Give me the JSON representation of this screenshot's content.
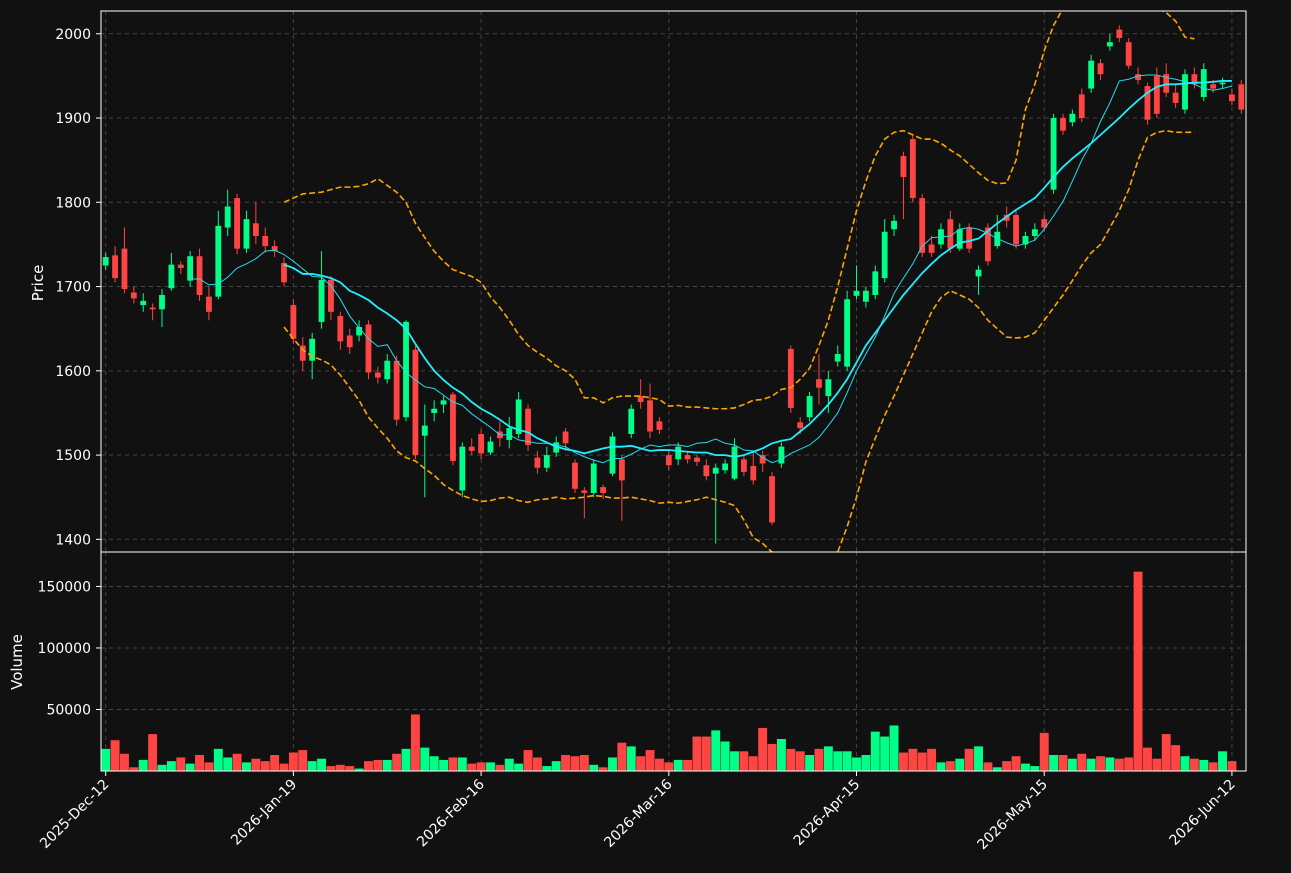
{
  "colors": {
    "background": "#111111",
    "up": "#00ff88",
    "down": "#ff4444",
    "ma_fast": "#22ddee",
    "ma_slow": "#22eeff",
    "bands": "#ffa500",
    "grid": "#444444",
    "axes": "#ffffff"
  },
  "chart_data": {
    "type": "candlestick",
    "grid": true,
    "price_panel": {
      "ylabel": "Price",
      "ylim": [
        1385,
        2027
      ],
      "yticks": [
        1400,
        1500,
        1600,
        1700,
        1800,
        1900,
        2000
      ]
    },
    "volume_panel": {
      "ylabel": "Volume",
      "ylim": [
        0,
        178000
      ],
      "yticks": [
        50000,
        100000,
        150000
      ]
    },
    "x_tick_labels": [
      {
        "label": "2025-Dec-12",
        "index": 0
      },
      {
        "label": "2026-Jan-19",
        "index": 20
      },
      {
        "label": "2026-Feb-16",
        "index": 40
      },
      {
        "label": "2026-Mar-16",
        "index": 60
      },
      {
        "label": "2026-Apr-15",
        "index": 80
      },
      {
        "label": "2026-May-15",
        "index": 100
      },
      {
        "label": "2026-Jun-12",
        "index": 120
      }
    ],
    "candles": [
      [
        1725,
        1735,
        1720,
        1740
      ],
      [
        1737,
        1710,
        1705,
        1748
      ],
      [
        1745,
        1697,
        1692,
        1770
      ],
      [
        1693,
        1686,
        1680,
        1700
      ],
      [
        1678,
        1683,
        1670,
        1692
      ],
      [
        1675,
        1673,
        1660,
        1680
      ],
      [
        1673,
        1690,
        1652,
        1697
      ],
      [
        1698,
        1726,
        1695,
        1740
      ],
      [
        1726,
        1722,
        1715,
        1730
      ],
      [
        1707,
        1736,
        1700,
        1742
      ],
      [
        1736,
        1690,
        1683,
        1745
      ],
      [
        1688,
        1670,
        1660,
        1700
      ],
      [
        1688,
        1772,
        1685,
        1790
      ],
      [
        1770,
        1795,
        1760,
        1815
      ],
      [
        1805,
        1745,
        1738,
        1810
      ],
      [
        1745,
        1780,
        1740,
        1790
      ],
      [
        1775,
        1760,
        1750,
        1800
      ],
      [
        1760,
        1748,
        1740,
        1770
      ],
      [
        1748,
        1742,
        1735,
        1755
      ],
      [
        1728,
        1705,
        1700,
        1735
      ],
      [
        1678,
        1638,
        1632,
        1685
      ],
      [
        1630,
        1612,
        1600,
        1640
      ],
      [
        1612,
        1638,
        1590,
        1645
      ],
      [
        1658,
        1708,
        1650,
        1742
      ],
      [
        1708,
        1670,
        1660,
        1712
      ],
      [
        1665,
        1635,
        1625,
        1670
      ],
      [
        1642,
        1628,
        1620,
        1650
      ],
      [
        1642,
        1652,
        1635,
        1660
      ],
      [
        1655,
        1598,
        1590,
        1660
      ],
      [
        1598,
        1592,
        1585,
        1605
      ],
      [
        1590,
        1612,
        1585,
        1620
      ],
      [
        1612,
        1542,
        1535,
        1618
      ],
      [
        1545,
        1658,
        1540,
        1660
      ],
      [
        1625,
        1500,
        1495,
        1630
      ],
      [
        1523,
        1535,
        1450,
        1560
      ],
      [
        1550,
        1555,
        1540,
        1565
      ],
      [
        1560,
        1565,
        1550,
        1570
      ],
      [
        1572,
        1493,
        1488,
        1575
      ],
      [
        1458,
        1510,
        1450,
        1515
      ],
      [
        1510,
        1505,
        1500,
        1520
      ],
      [
        1525,
        1502,
        1495,
        1530
      ],
      [
        1503,
        1516,
        1500,
        1522
      ],
      [
        1528,
        1520,
        1510,
        1540
      ],
      [
        1518,
        1532,
        1508,
        1545
      ],
      [
        1525,
        1566,
        1520,
        1575
      ],
      [
        1555,
        1512,
        1505,
        1560
      ],
      [
        1497,
        1485,
        1478,
        1505
      ],
      [
        1485,
        1500,
        1480,
        1510
      ],
      [
        1503,
        1515,
        1498,
        1522
      ],
      [
        1528,
        1514,
        1505,
        1532
      ],
      [
        1491,
        1460,
        1455,
        1495
      ],
      [
        1458,
        1455,
        1425,
        1462
      ],
      [
        1455,
        1490,
        1450,
        1495
      ],
      [
        1462,
        1455,
        1448,
        1465
      ],
      [
        1478,
        1522,
        1475,
        1527
      ],
      [
        1495,
        1470,
        1422,
        1500
      ],
      [
        1525,
        1555,
        1520,
        1560
      ],
      [
        1570,
        1563,
        1555,
        1590
      ],
      [
        1565,
        1528,
        1520,
        1585
      ],
      [
        1540,
        1530,
        1525,
        1545
      ],
      [
        1500,
        1488,
        1482,
        1505
      ],
      [
        1495,
        1510,
        1488,
        1515
      ],
      [
        1500,
        1495,
        1490,
        1505
      ],
      [
        1497,
        1492,
        1487,
        1500
      ],
      [
        1488,
        1475,
        1470,
        1495
      ],
      [
        1478,
        1485,
        1395,
        1490
      ],
      [
        1482,
        1490,
        1478,
        1495
      ],
      [
        1472,
        1510,
        1470,
        1520
      ],
      [
        1495,
        1480,
        1475,
        1500
      ],
      [
        1487,
        1470,
        1465,
        1505
      ],
      [
        1500,
        1490,
        1480,
        1505
      ],
      [
        1475,
        1420,
        1417,
        1480
      ],
      [
        1490,
        1510,
        1485,
        1515
      ],
      [
        1626,
        1556,
        1550,
        1630
      ],
      [
        1539,
        1532,
        1525,
        1545
      ],
      [
        1545,
        1570,
        1540,
        1575
      ],
      [
        1590,
        1580,
        1560,
        1620
      ],
      [
        1570,
        1590,
        1550,
        1600
      ],
      [
        1611,
        1620,
        1605,
        1630
      ],
      [
        1605,
        1685,
        1600,
        1695
      ],
      [
        1689,
        1695,
        1685,
        1725
      ],
      [
        1682,
        1695,
        1675,
        1700
      ],
      [
        1690,
        1718,
        1685,
        1725
      ],
      [
        1710,
        1765,
        1705,
        1780
      ],
      [
        1768,
        1778,
        1760,
        1785
      ],
      [
        1855,
        1830,
        1780,
        1860
      ],
      [
        1875,
        1805,
        1800,
        1880
      ],
      [
        1805,
        1740,
        1735,
        1810
      ],
      [
        1750,
        1740,
        1735,
        1760
      ],
      [
        1750,
        1768,
        1745,
        1775
      ],
      [
        1780,
        1745,
        1740,
        1790
      ],
      [
        1745,
        1768,
        1742,
        1775
      ],
      [
        1770,
        1745,
        1740,
        1775
      ],
      [
        1712,
        1720,
        1690,
        1725
      ],
      [
        1770,
        1730,
        1725,
        1775
      ],
      [
        1748,
        1765,
        1745,
        1785
      ],
      [
        1785,
        1778,
        1770,
        1795
      ],
      [
        1785,
        1750,
        1745,
        1790
      ],
      [
        1750,
        1760,
        1745,
        1765
      ],
      [
        1760,
        1768,
        1755,
        1775
      ],
      [
        1780,
        1770,
        1765,
        1785
      ],
      [
        1815,
        1900,
        1810,
        1905
      ],
      [
        1900,
        1885,
        1880,
        1905
      ],
      [
        1895,
        1905,
        1890,
        1910
      ],
      [
        1928,
        1900,
        1895,
        1935
      ],
      [
        1935,
        1968,
        1930,
        1975
      ],
      [
        1965,
        1952,
        1945,
        1970
      ],
      [
        1985,
        1990,
        1980,
        2000
      ],
      [
        2005,
        1995,
        1990,
        2010
      ],
      [
        1990,
        1962,
        1958,
        1995
      ],
      [
        1952,
        1945,
        1940,
        1960
      ],
      [
        1938,
        1898,
        1892,
        1942
      ],
      [
        1950,
        1905,
        1900,
        1960
      ],
      [
        1952,
        1930,
        1925,
        1965
      ],
      [
        1930,
        1918,
        1912,
        1940
      ],
      [
        1910,
        1952,
        1905,
        1958
      ],
      [
        1952,
        1940,
        1935,
        1960
      ],
      [
        1925,
        1958,
        1920,
        1965
      ],
      [
        1940,
        1935,
        1930,
        1945
      ],
      [
        1940,
        1942,
        1935,
        1948
      ],
      [
        1928,
        1920,
        1915,
        1935
      ],
      [
        1940,
        1910,
        1905,
        1945
      ]
    ],
    "volume": [
      18000,
      25000,
      14000,
      3000,
      9000,
      30000,
      5000,
      8000,
      11000,
      6000,
      13000,
      7000,
      18000,
      11000,
      14000,
      7000,
      10000,
      8000,
      13000,
      6000,
      15000,
      17000,
      8000,
      10000,
      4000,
      5000,
      4000,
      2000,
      8000,
      9000,
      9000,
      14000,
      18000,
      46000,
      19000,
      12000,
      9000,
      11000,
      11000,
      6000,
      7000,
      7000,
      5000,
      10000,
      6000,
      17000,
      11000,
      4000,
      8000,
      13000,
      12000,
      13000,
      5000,
      3000,
      11000,
      23000,
      20000,
      12000,
      17000,
      10000,
      7000,
      9000,
      9000,
      28000,
      28000,
      33000,
      24000,
      16000,
      16000,
      12000,
      35000,
      22000,
      26000,
      18000,
      16000,
      13000,
      18000,
      20000,
      16000,
      16000,
      11000,
      13000,
      32000,
      28000,
      37000,
      15000,
      18000,
      15000,
      18000,
      7000,
      8000,
      10000,
      18000,
      20000,
      7000,
      3000,
      8000,
      12000,
      6000,
      4000,
      31000,
      13000,
      13000,
      10000,
      14000,
      10000,
      12000,
      11000,
      10000,
      11000,
      162000,
      19000,
      10000,
      30000,
      21000,
      12000,
      10000,
      9000,
      7000,
      16000,
      8000
    ],
    "ma_fast": [
      null,
      null,
      null,
      null,
      null,
      null,
      null,
      null,
      null,
      1709,
      1709,
      1702,
      1703,
      1711,
      1722,
      1727,
      1733,
      1742,
      1743,
      1738,
      1730,
      1721,
      1712,
      1711,
      1701,
      1685,
      1665,
      1651,
      1638,
      1629,
      1631,
      1612,
      1598,
      1589,
      1581,
      1579,
      1571,
      1563,
      1559,
      1549,
      1541,
      1533,
      1524,
      1524,
      1518,
      1516,
      1514,
      1514,
      1512,
      1510,
      1503,
      1498,
      1494,
      1491,
      1496,
      1496,
      1501,
      1507,
      1512,
      1510,
      1512,
      1512,
      1510,
      1514,
      1515,
      1519,
      1514,
      1512,
      1506,
      1505,
      1497,
      1491,
      1495,
      1502,
      1507,
      1512,
      1521,
      1535,
      1550,
      1574,
      1600,
      1620,
      1640,
      1665,
      1692,
      1710,
      1727,
      1748,
      1758,
      1759,
      1760,
      1768,
      1770,
      1768,
      1763,
      1757,
      1752,
      1748,
      1751,
      1755,
      1768,
      1784,
      1801,
      1825,
      1850,
      1870,
      1896,
      1918,
      1944,
      1946,
      1950,
      1951,
      1951,
      1948,
      1946,
      1943,
      1940,
      1935,
      1933,
      1935,
      1938
    ],
    "ma_slow": [
      null,
      null,
      null,
      null,
      null,
      null,
      null,
      null,
      null,
      null,
      null,
      null,
      null,
      null,
      null,
      null,
      null,
      null,
      null,
      1726,
      1722,
      1715,
      1715,
      1713,
      1710,
      1705,
      1695,
      1690,
      1684,
      1675,
      1668,
      1660,
      1650,
      1632,
      1615,
      1600,
      1589,
      1580,
      1573,
      1563,
      1555,
      1549,
      1542,
      1534,
      1530,
      1527,
      1520,
      1515,
      1510,
      1507,
      1505,
      1502,
      1505,
      1508,
      1510,
      1510,
      1511,
      1508,
      1505,
      1506,
      1506,
      1505,
      1504,
      1503,
      1503,
      1500,
      1500,
      1498,
      1500,
      1504,
      1508,
      1514,
      1517,
      1519,
      1528,
      1537,
      1548,
      1560,
      1574,
      1590,
      1610,
      1630,
      1645,
      1660,
      1675,
      1690,
      1703,
      1716,
      1727,
      1737,
      1745,
      1752,
      1754,
      1757,
      1766,
      1775,
      1783,
      1791,
      1798,
      1805,
      1817,
      1830,
      1842,
      1852,
      1861,
      1870,
      1880,
      1890,
      1900,
      1911,
      1921,
      1930,
      1937,
      1940,
      1940,
      1941,
      1942,
      1942,
      1943,
      1944,
      1944
    ],
    "band_upper": [
      null,
      null,
      null,
      null,
      null,
      null,
      null,
      null,
      null,
      null,
      null,
      null,
      null,
      null,
      null,
      null,
      null,
      null,
      null,
      1800,
      1805,
      1810,
      1811,
      1812,
      1815,
      1818,
      1818,
      1819,
      1822,
      1828,
      1820,
      1812,
      1800,
      1775,
      1758,
      1742,
      1730,
      1720,
      1716,
      1712,
      1705,
      1688,
      1675,
      1660,
      1643,
      1630,
      1622,
      1615,
      1606,
      1600,
      1590,
      1568,
      1568,
      1562,
      1568,
      1570,
      1570,
      1570,
      1568,
      1566,
      1558,
      1559,
      1557,
      1557,
      1556,
      1555,
      1555,
      1556,
      1560,
      1565,
      1566,
      1570,
      1578,
      1580,
      1590,
      1603,
      1630,
      1660,
      1700,
      1745,
      1790,
      1825,
      1855,
      1875,
      1883,
      1885,
      1880,
      1875,
      1875,
      1870,
      1862,
      1855,
      1845,
      1835,
      1826,
      1822,
      1823,
      1850,
      1910,
      1940,
      1980,
      2010,
      2030,
      2050,
      2060,
      2070,
      2070,
      2070,
      2069,
      2060,
      2050,
      2040,
      2030,
      2025,
      2015,
      1996,
      1994
    ],
    "band_lower": [
      null,
      null,
      null,
      null,
      null,
      null,
      null,
      null,
      null,
      null,
      null,
      null,
      null,
      null,
      null,
      null,
      null,
      null,
      null,
      1652,
      1638,
      1625,
      1617,
      1613,
      1607,
      1595,
      1580,
      1565,
      1545,
      1532,
      1520,
      1505,
      1497,
      1493,
      1484,
      1476,
      1465,
      1458,
      1452,
      1448,
      1445,
      1446,
      1449,
      1450,
      1446,
      1444,
      1447,
      1448,
      1450,
      1448,
      1449,
      1450,
      1452,
      1451,
      1449,
      1449,
      1450,
      1448,
      1446,
      1443,
      1444,
      1443,
      1445,
      1447,
      1450,
      1447,
      1444,
      1440,
      1423,
      1402,
      1395,
      1385,
      1370,
      1360,
      1345,
      1340,
      1345,
      1370,
      1385,
      1415,
      1450,
      1492,
      1520,
      1547,
      1570,
      1595,
      1620,
      1645,
      1670,
      1687,
      1695,
      1690,
      1685,
      1675,
      1660,
      1650,
      1640,
      1639,
      1640,
      1645,
      1660,
      1675,
      1690,
      1707,
      1725,
      1740,
      1750,
      1770,
      1790,
      1815,
      1850,
      1877,
      1883,
      1885,
      1883,
      1883,
      1883
    ]
  }
}
